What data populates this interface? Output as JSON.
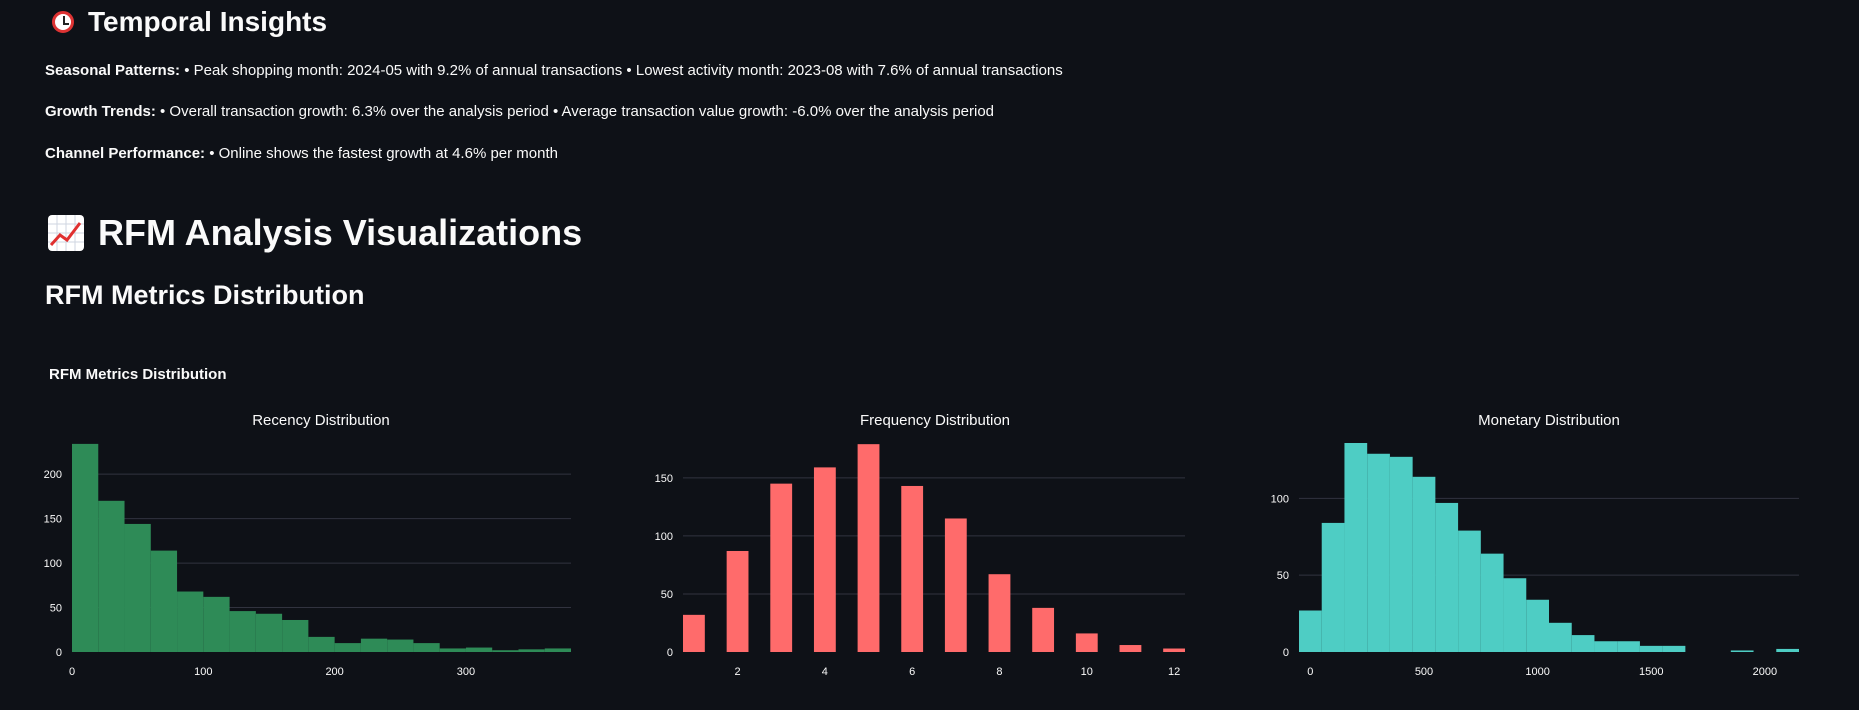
{
  "temporal": {
    "title": "Temporal Insights",
    "icon": "alarm-clock-icon",
    "lines": [
      {
        "label": "Seasonal Patterns:",
        "text": " • Peak shopping month: 2024-05 with 9.2% of annual transactions • Lowest activity month: 2023-08 with 7.6% of annual transactions"
      },
      {
        "label": "Growth Trends:",
        "text": " • Overall transaction growth: 6.3% over the analysis period • Average transaction value growth: -6.0% over the analysis period"
      },
      {
        "label": "Channel Performance:",
        "text": " • Online shows the fastest growth at 4.6% per month"
      }
    ]
  },
  "rfm": {
    "title": "RFM Analysis Visualizations",
    "icon": "chart-increasing-icon",
    "subtitle": "RFM Metrics Distribution",
    "figure_title": "RFM Metrics Distribution"
  },
  "chart_data": [
    {
      "type": "bar",
      "title": "Recency Distribution",
      "color": "#2e8b57",
      "bins": [
        [
          0,
          20
        ],
        [
          20,
          40
        ],
        [
          40,
          60
        ],
        [
          60,
          80
        ],
        [
          80,
          100
        ],
        [
          100,
          120
        ],
        [
          120,
          140
        ],
        [
          140,
          160
        ],
        [
          160,
          180
        ],
        [
          180,
          200
        ],
        [
          200,
          220
        ],
        [
          220,
          240
        ],
        [
          240,
          260
        ],
        [
          260,
          280
        ],
        [
          280,
          300
        ],
        [
          300,
          320
        ],
        [
          320,
          340
        ],
        [
          340,
          360
        ],
        [
          360,
          380
        ]
      ],
      "values": [
        234,
        170,
        144,
        114,
        68,
        62,
        46,
        43,
        36,
        17,
        10,
        15,
        14,
        10,
        4,
        5,
        2,
        3,
        4
      ],
      "xlim": [
        0,
        380
      ],
      "ylim": [
        0,
        235
      ],
      "xticks": [
        0,
        100,
        200,
        300
      ],
      "yticks": [
        0,
        50,
        100,
        150,
        200
      ]
    },
    {
      "type": "bar",
      "title": "Frequency Distribution",
      "color": "#ff6b6b",
      "bins": [
        [
          0.75,
          1.25
        ],
        [
          1.75,
          2.25
        ],
        [
          2.75,
          3.25
        ],
        [
          3.75,
          4.25
        ],
        [
          4.75,
          5.25
        ],
        [
          5.75,
          6.25
        ],
        [
          6.75,
          7.25
        ],
        [
          7.75,
          8.25
        ],
        [
          8.75,
          9.25
        ],
        [
          9.75,
          10.25
        ],
        [
          10.75,
          11.25
        ],
        [
          11.75,
          12.25
        ]
      ],
      "values": [
        32,
        87,
        145,
        159,
        179,
        143,
        115,
        67,
        38,
        16,
        6,
        3
      ],
      "xlim": [
        0.75,
        12.25
      ],
      "ylim": [
        0,
        180
      ],
      "xticks": [
        2,
        4,
        6,
        8,
        10,
        12
      ],
      "yticks": [
        0,
        50,
        100,
        150
      ]
    },
    {
      "type": "bar",
      "title": "Monetary Distribution",
      "color": "#4ecdc4",
      "bins": [
        [
          -50,
          50
        ],
        [
          50,
          150
        ],
        [
          150,
          250
        ],
        [
          250,
          350
        ],
        [
          350,
          450
        ],
        [
          450,
          550
        ],
        [
          550,
          650
        ],
        [
          650,
          750
        ],
        [
          750,
          850
        ],
        [
          850,
          950
        ],
        [
          950,
          1050
        ],
        [
          1050,
          1150
        ],
        [
          1150,
          1250
        ],
        [
          1250,
          1350
        ],
        [
          1350,
          1450
        ],
        [
          1450,
          1550
        ],
        [
          1550,
          1650
        ],
        [
          1650,
          1750
        ],
        [
          1750,
          1850
        ],
        [
          1850,
          1950
        ],
        [
          1950,
          2050
        ],
        [
          2050,
          2150
        ]
      ],
      "values": [
        27,
        84,
        136,
        129,
        127,
        114,
        97,
        79,
        64,
        48,
        34,
        19,
        11,
        7,
        7,
        4,
        4,
        0,
        0,
        1,
        0,
        2
      ],
      "xlim": [
        -50,
        2150
      ],
      "ylim": [
        0,
        136
      ],
      "xticks": [
        0,
        500,
        1000,
        1500,
        2000
      ],
      "yticks": [
        0,
        50,
        100
      ]
    }
  ]
}
